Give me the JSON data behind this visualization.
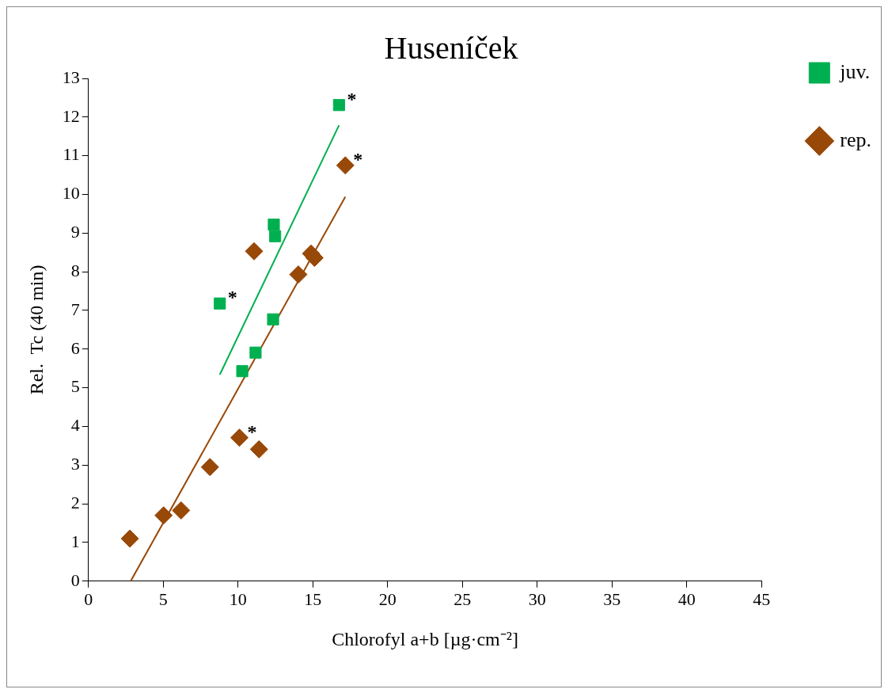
{
  "chart_data": {
    "type": "scatter",
    "title": "Huseníček",
    "xlabel": "Chlorofyl a+b [µg·cm⁻²]",
    "ylabel": "Rel.  Tc (40 min)",
    "xlim": [
      0,
      45
    ],
    "xticks": [
      0,
      5,
      10,
      15,
      20,
      25,
      30,
      35,
      40,
      45
    ],
    "ylim": [
      0,
      13
    ],
    "yticks": [
      0,
      1,
      2,
      3,
      4,
      5,
      6,
      7,
      8,
      9,
      10,
      11,
      12,
      13
    ],
    "grid": false,
    "legend": "right",
    "series": [
      {
        "name": "juv.",
        "color": "#00b050",
        "marker": "square",
        "x": [
          16.75,
          12.39,
          12.48,
          8.78,
          12.34,
          11.17,
          10.28
        ],
        "values": [
          12.31,
          9.22,
          8.92,
          7.18,
          6.77,
          5.91,
          5.43
        ]
      },
      {
        "name": "rep.",
        "color": "#984807",
        "marker": "diamond",
        "x": [
          17.17,
          11.07,
          14.88,
          15.11,
          14.03,
          10.09,
          11.4,
          8.12,
          6.19,
          5.02,
          2.77
        ],
        "values": [
          10.75,
          8.53,
          8.47,
          8.36,
          7.93,
          3.71,
          3.41,
          2.95,
          1.83,
          1.7,
          1.1
        ]
      },
      {
        "type": "line",
        "color": "#00b050",
        "marker": "none",
        "x": [
          8.78,
          16.75
        ],
        "values": [
          5.34,
          11.79
        ]
      },
      {
        "type": "line",
        "color": "#984807",
        "marker": "none",
        "x": [
          2.82,
          17.17
        ],
        "values": [
          0,
          9.94
        ]
      }
    ],
    "annotations": [
      {
        "text": "*",
        "x": 16.75,
        "y": 12.31
      },
      {
        "text": "*",
        "x": 8.78,
        "y": 7.18
      },
      {
        "text": "*",
        "x": 17.17,
        "y": 10.75
      },
      {
        "text": "*",
        "x": 10.09,
        "y": 3.71
      }
    ]
  }
}
